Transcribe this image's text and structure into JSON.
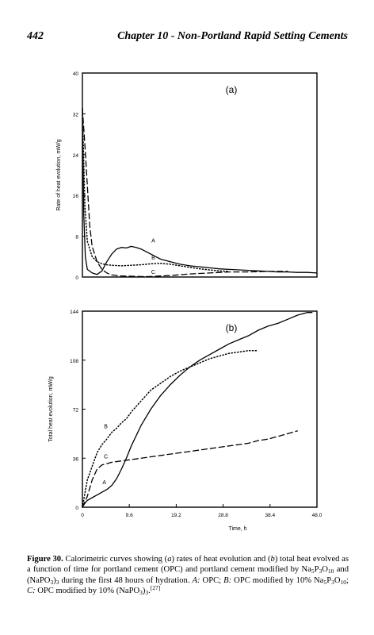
{
  "header": {
    "page_number": "442",
    "chapter_title": "Chapter 10 - Non-Portland Rapid Setting Cements"
  },
  "chart_data": [
    {
      "type": "line",
      "panel_label": "(a)",
      "ylabel": "Rate of heat evolution, mW/g",
      "xlabel": "",
      "xlim": [
        0,
        48
      ],
      "ylim": [
        0,
        40
      ],
      "yticks": [
        "0",
        "8",
        "16",
        "24",
        "32",
        "40"
      ],
      "series": [
        {
          "name": "A",
          "style": "solid",
          "x": [
            0,
            0.3,
            0.6,
            1,
            2,
            3,
            4,
            5,
            6,
            7,
            8,
            9,
            10,
            11,
            12,
            13,
            14,
            15,
            16,
            18,
            20,
            22,
            24,
            26,
            28,
            30,
            32,
            34,
            36,
            38,
            40,
            42,
            44,
            46,
            48
          ],
          "y": [
            30,
            12,
            4,
            1.5,
            0.8,
            0.5,
            1.2,
            3,
            4.5,
            5.5,
            5.8,
            5.7,
            6,
            5.8,
            5.5,
            5,
            4.5,
            4,
            3.5,
            3,
            2.5,
            2.2,
            2,
            1.8,
            1.6,
            1.5,
            1.4,
            1.3,
            1.2,
            1.1,
            1.0,
            1.0,
            0.9,
            0.9,
            0.8
          ]
        },
        {
          "name": "B",
          "style": "dotted",
          "x": [
            0,
            0.5,
            1,
            2,
            3,
            4,
            5,
            6,
            8,
            10,
            12,
            14,
            16,
            18,
            20,
            22,
            24,
            26,
            28,
            30
          ],
          "y": [
            33,
            14,
            7,
            4,
            3,
            2.6,
            2.4,
            2.3,
            2.2,
            2.3,
            2.4,
            2.6,
            2.7,
            2.5,
            2.2,
            1.9,
            1.6,
            1.4,
            1.2,
            1.1
          ]
        },
        {
          "name": "C",
          "style": "dashed",
          "x": [
            0,
            0.5,
            1,
            1.5,
            2,
            3,
            4,
            5,
            6,
            8,
            10,
            12,
            14,
            16,
            18,
            20,
            22,
            24,
            26,
            28,
            30,
            34,
            38,
            42
          ],
          "y": [
            33,
            26,
            18,
            10,
            6,
            3,
            1.5,
            0.8,
            0.4,
            0.2,
            0.15,
            0.1,
            0.1,
            0.2,
            0.3,
            0.45,
            0.6,
            0.7,
            0.8,
            0.9,
            1.0,
            1.0,
            1.1,
            1.1
          ]
        }
      ],
      "labels": [
        {
          "text": "A",
          "x": 14.5,
          "y": 6.8
        },
        {
          "text": "B",
          "x": 14.5,
          "y": 3.4
        },
        {
          "text": "C",
          "x": 14.5,
          "y": 0.6
        }
      ]
    },
    {
      "type": "line",
      "panel_label": "(b)",
      "ylabel": "Total heat evolution, mW/g",
      "xlabel": "Time, h",
      "xlim": [
        0,
        48
      ],
      "ylim": [
        0,
        144
      ],
      "xticks": [
        "0",
        "9.6",
        "19.2",
        "28.8",
        "38.4",
        "48.0"
      ],
      "yticks": [
        "0",
        "36",
        "72",
        "108",
        "144"
      ],
      "series": [
        {
          "name": "A",
          "style": "solid",
          "x": [
            0,
            0.5,
            1,
            2,
            3,
            4,
            5,
            6,
            7,
            8,
            9,
            10,
            12,
            14,
            16,
            18,
            20,
            22,
            24,
            26,
            28,
            30,
            32,
            34,
            36,
            38,
            40,
            42,
            44,
            46,
            47
          ],
          "y": [
            0,
            3,
            5,
            7,
            9,
            11,
            13,
            16,
            21,
            28,
            36,
            45,
            60,
            72,
            82,
            90,
            97,
            103,
            108,
            112,
            116,
            120,
            123,
            126,
            130,
            133,
            135,
            138,
            141,
            143,
            143
          ]
        },
        {
          "name": "B",
          "style": "dotted",
          "x": [
            0,
            1,
            2,
            3,
            4,
            5,
            6,
            7,
            8,
            9,
            10,
            12,
            14,
            16,
            18,
            20,
            22,
            24,
            26,
            28,
            30,
            32,
            34,
            36
          ],
          "y": [
            0,
            20,
            30,
            40,
            46,
            50,
            55,
            58,
            62,
            65,
            70,
            78,
            86,
            91,
            96,
            100,
            103,
            106,
            109,
            111,
            113,
            114,
            115,
            115
          ]
        },
        {
          "name": "C",
          "style": "dashed",
          "x": [
            0,
            1,
            2,
            3,
            4,
            5,
            6,
            8,
            10,
            12,
            14,
            16,
            18,
            20,
            22,
            24,
            26,
            28,
            30,
            32,
            34,
            36,
            38,
            40,
            42,
            44
          ],
          "y": [
            0,
            8,
            20,
            28,
            31,
            32,
            33,
            34,
            35,
            36,
            37,
            38,
            39,
            40,
            41,
            42,
            43,
            44,
            45,
            46,
            47,
            49,
            50,
            52,
            54,
            56
          ]
        }
      ],
      "labels": [
        {
          "text": "A",
          "x": 4.5,
          "y": 17
        },
        {
          "text": "B",
          "x": 4.8,
          "y": 58
        },
        {
          "text": "C",
          "x": 4.8,
          "y": 36
        }
      ]
    }
  ],
  "caption": {
    "label": "Figure 30.",
    "t1": " Calorimetric curves showing (",
    "a": "a",
    "t2": ") rates of heat evolution and (",
    "b": "b",
    "t3": ") total heat evolved as a function of time for portland cement (OPC) and portland cement modified by Na",
    "sub1": "5",
    "t4": "P",
    "sub2": "3",
    "t5": "O",
    "sub3": "10",
    "t6": " and (NaPO",
    "sub4": "3",
    "t7": ")",
    "sub5": "3",
    "t8": " during the first 48 hours of hydration. ",
    "iA": "A:",
    "t9": " OPC; ",
    "iB": "B:",
    "t10": " OPC modified by 10% Na",
    "sub6": "5",
    "t11": "P",
    "sub7": "3",
    "t12": "O",
    "sub8": "10",
    "t13": "; ",
    "iC": "C:",
    "t14": " OPC modified by 10% (NaPO",
    "sub9": "3",
    "t15": ")",
    "sub10": "3",
    "t16": ".",
    "ref": "[27]"
  }
}
